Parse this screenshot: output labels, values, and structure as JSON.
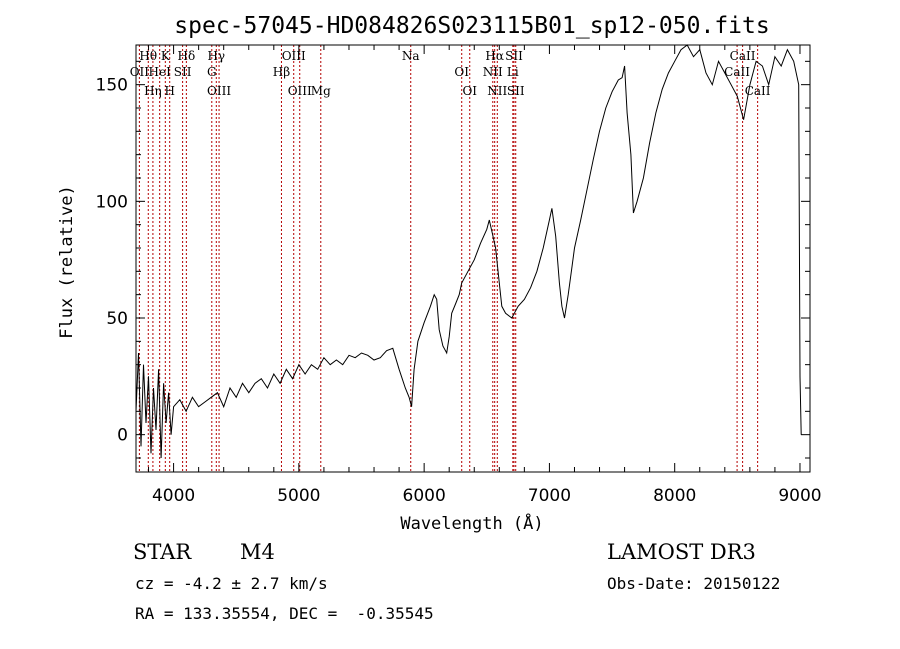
{
  "chart_data": {
    "type": "line",
    "title": "spec-57045-HD084826S023115B01_sp12-050.fits",
    "xlabel": "Wavelength (Å)",
    "ylabel": "Flux (relative)",
    "xlim": [
      3700,
      9080
    ],
    "ylim": [
      -16,
      167
    ],
    "xticks": [
      4000,
      5000,
      6000,
      7000,
      8000,
      9000
    ],
    "yticks": [
      0,
      50,
      100,
      150
    ],
    "series": [
      {
        "name": "spectrum",
        "x": [
          3700,
          3720,
          3740,
          3760,
          3780,
          3800,
          3820,
          3840,
          3860,
          3880,
          3900,
          3920,
          3940,
          3960,
          3980,
          4000,
          4050,
          4100,
          4150,
          4200,
          4250,
          4300,
          4350,
          4400,
          4450,
          4500,
          4550,
          4600,
          4650,
          4700,
          4750,
          4800,
          4850,
          4900,
          4950,
          5000,
          5050,
          5100,
          5150,
          5200,
          5250,
          5300,
          5350,
          5400,
          5450,
          5500,
          5550,
          5600,
          5650,
          5700,
          5750,
          5800,
          5850,
          5880,
          5900,
          5920,
          5950,
          6000,
          6050,
          6080,
          6100,
          6120,
          6150,
          6180,
          6200,
          6220,
          6250,
          6280,
          6300,
          6350,
          6400,
          6450,
          6500,
          6520,
          6550,
          6570,
          6600,
          6620,
          6650,
          6700,
          6720,
          6750,
          6800,
          6850,
          6900,
          6950,
          7000,
          7020,
          7050,
          7080,
          7100,
          7120,
          7150,
          7180,
          7200,
          7250,
          7300,
          7350,
          7400,
          7450,
          7500,
          7550,
          7580,
          7600,
          7620,
          7650,
          7670,
          7700,
          7750,
          7800,
          7850,
          7900,
          7950,
          8000,
          8050,
          8100,
          8150,
          8200,
          8250,
          8300,
          8350,
          8400,
          8450,
          8500,
          8550,
          8600,
          8650,
          8700,
          8750,
          8800,
          8850,
          8900,
          8950,
          8990,
          9000,
          9010
        ],
        "y": [
          10,
          35,
          -5,
          30,
          5,
          25,
          -8,
          20,
          2,
          28,
          -10,
          22,
          5,
          18,
          0,
          12,
          15,
          10,
          16,
          12,
          14,
          16,
          18,
          12,
          20,
          16,
          22,
          18,
          22,
          24,
          20,
          26,
          22,
          28,
          24,
          30,
          26,
          30,
          28,
          33,
          30,
          32,
          30,
          34,
          33,
          35,
          34,
          32,
          33,
          36,
          37,
          28,
          20,
          16,
          12,
          28,
          40,
          48,
          55,
          60,
          58,
          45,
          38,
          35,
          42,
          52,
          56,
          60,
          65,
          70,
          75,
          82,
          88,
          92,
          85,
          80,
          65,
          55,
          52,
          50,
          52,
          55,
          58,
          63,
          70,
          80,
          92,
          97,
          85,
          65,
          55,
          50,
          60,
          72,
          80,
          92,
          105,
          118,
          130,
          140,
          147,
          152,
          153,
          158,
          138,
          120,
          95,
          100,
          110,
          125,
          138,
          148,
          155,
          160,
          165,
          168,
          162,
          165,
          155,
          150,
          160,
          155,
          150,
          145,
          135,
          150,
          160,
          158,
          150,
          162,
          158,
          165,
          160,
          150,
          25,
          0
        ]
      }
    ],
    "lines": [
      {
        "label": "Hθ",
        "x": 3798
      },
      {
        "label": "OII",
        "x": 3727
      },
      {
        "label": "Hη",
        "x": 3835
      },
      {
        "label": "K",
        "x": 3934
      },
      {
        "label": "HeI",
        "x": 3889
      },
      {
        "label": "H",
        "x": 3969
      },
      {
        "label": "Hδ",
        "x": 4102
      },
      {
        "label": "SII",
        "x": 4072
      },
      {
        "label": "OIII",
        "x": 4363
      },
      {
        "label": "Hγ",
        "x": 4341
      },
      {
        "label": "G",
        "x": 4305
      },
      {
        "label": "OIII",
        "x": 5007
      },
      {
        "label": "OIII",
        "x": 4959
      },
      {
        "label": "Hβ",
        "x": 4861
      },
      {
        "label": "Mg",
        "x": 5175
      },
      {
        "label": "Na",
        "x": 5893
      },
      {
        "label": "OI",
        "x": 6300
      },
      {
        "label": "OI",
        "x": 6364
      },
      {
        "label": "Hα",
        "x": 6563
      },
      {
        "label": "NII",
        "x": 6548
      },
      {
        "label": "NII",
        "x": 6584
      },
      {
        "label": "SII",
        "x": 6717
      },
      {
        "label": "Li",
        "x": 6708
      },
      {
        "label": "SII",
        "x": 6731
      },
      {
        "label": "CaII",
        "x": 8542
      },
      {
        "label": "CaII",
        "x": 8498
      },
      {
        "label": "CaII",
        "x": 8662
      }
    ]
  },
  "info": {
    "class": "STAR",
    "subclass": "M4",
    "survey": "LAMOST DR3",
    "cz": "cz = -4.2 ± 2.7 km/s",
    "obs_date": "Obs-Date: 20150122",
    "coords": "RA = 133.35554, DEC =  -0.35545"
  },
  "colors": {
    "line": "#000000",
    "marker": "#b30000"
  }
}
